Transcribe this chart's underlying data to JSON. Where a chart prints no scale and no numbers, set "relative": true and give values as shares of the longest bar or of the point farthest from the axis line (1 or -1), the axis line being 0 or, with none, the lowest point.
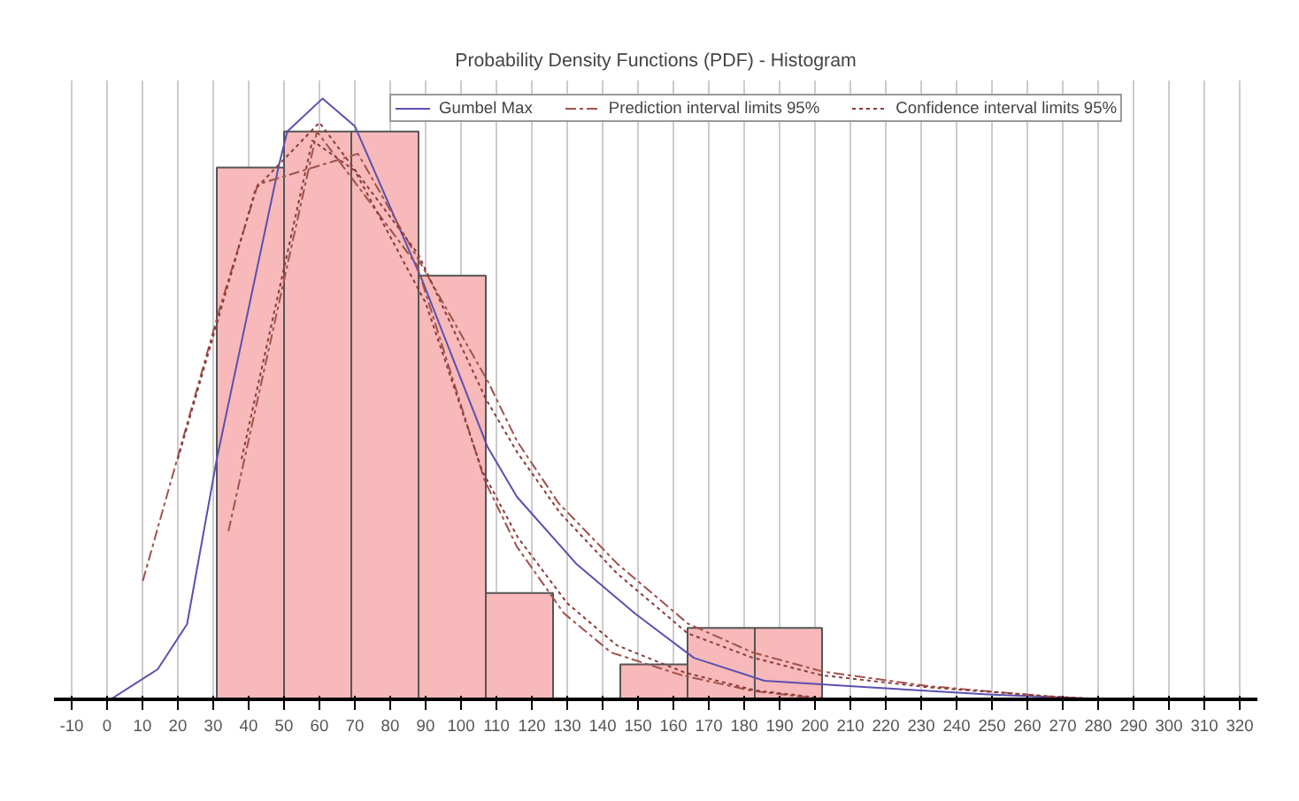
{
  "chart_data": {
    "type": "histogram",
    "title": "Probability Density Functions (PDF) - Histogram",
    "relative": true,
    "bins": [
      31,
      50,
      69,
      88,
      107,
      126,
      145,
      164,
      183,
      202
    ],
    "values": [
      0.885,
      0.945,
      0.945,
      0.705,
      0.177,
      0,
      0.058,
      0.119,
      0.119
    ],
    "color": "#f7b9b9",
    "xlim": [
      -15,
      325
    ],
    "xticks": [
      -10,
      0,
      10,
      20,
      30,
      40,
      50,
      60,
      70,
      80,
      90,
      100,
      110,
      120,
      130,
      140,
      150,
      160,
      170,
      180,
      190,
      200,
      210,
      220,
      230,
      240,
      250,
      260,
      270,
      280,
      290,
      300,
      310,
      320
    ],
    "grid": "x",
    "legend": "top",
    "series": [
      {
        "type": "line",
        "name": "Gumbel Max",
        "color": "#5a50b0",
        "line_style": "solid",
        "x": [
          1,
          14.3,
          22.6,
          31,
          48.4,
          50.9,
          60.9,
          70,
          89.2,
          107.5,
          115.8,
          132.5,
          149.1,
          165.8,
          185.7,
          215.7,
          249,
          282
        ],
        "values": [
          0.0,
          0.05,
          0.125,
          0.4,
          0.885,
          0.945,
          1.0,
          0.954,
          0.695,
          0.42,
          0.337,
          0.226,
          0.143,
          0.069,
          0.031,
          0.02,
          0.008,
          0
        ]
      },
      {
        "type": "line",
        "name": "Prediction interval limits 95%",
        "color": "#a0524a",
        "line_style": "dashed",
        "x": [
          10.1,
          31.8,
          42.6,
          70.9,
          107.5,
          115.8,
          127.5,
          144.1,
          164.1,
          182.4,
          202.4,
          232,
          265.7,
          282
        ],
        "values": [
          0.197,
          0.65,
          0.857,
          0.908,
          0.53,
          0.43,
          0.327,
          0.226,
          0.126,
          0.078,
          0.046,
          0.022,
          0.005,
          0
        ]
      },
      {
        "type": "line",
        "color": "#a0524a",
        "line_style": "dashed",
        "x": [
          34.3,
          59.3,
          87.5,
          106.7,
          115.8,
          129.1,
          142.4,
          162.4,
          182.4,
          202.4
        ],
        "values": [
          0.28,
          0.945,
          0.723,
          0.364,
          0.254,
          0.143,
          0.078,
          0.04,
          0.014,
          0
        ]
      },
      {
        "type": "line",
        "name": "Confidence interval limits 95%",
        "color": "#8b3a3a",
        "line_style": "dotted",
        "x": [
          20,
          42,
          60,
          88,
          107,
          116,
          128,
          144,
          164,
          182,
          202,
          232,
          266,
          282
        ],
        "values": [
          0.4,
          0.85,
          0.96,
          0.74,
          0.5,
          0.41,
          0.31,
          0.21,
          0.11,
          0.07,
          0.04,
          0.02,
          0.005,
          0
        ]
      },
      {
        "type": "line",
        "color": "#8b3a3a",
        "line_style": "dotted",
        "x": [
          38,
          58,
          70,
          90,
          106,
          116,
          130,
          144,
          163,
          183,
          205
        ],
        "values": [
          0.4,
          0.93,
          0.88,
          0.66,
          0.38,
          0.27,
          0.16,
          0.09,
          0.045,
          0.015,
          0
        ]
      }
    ]
  }
}
